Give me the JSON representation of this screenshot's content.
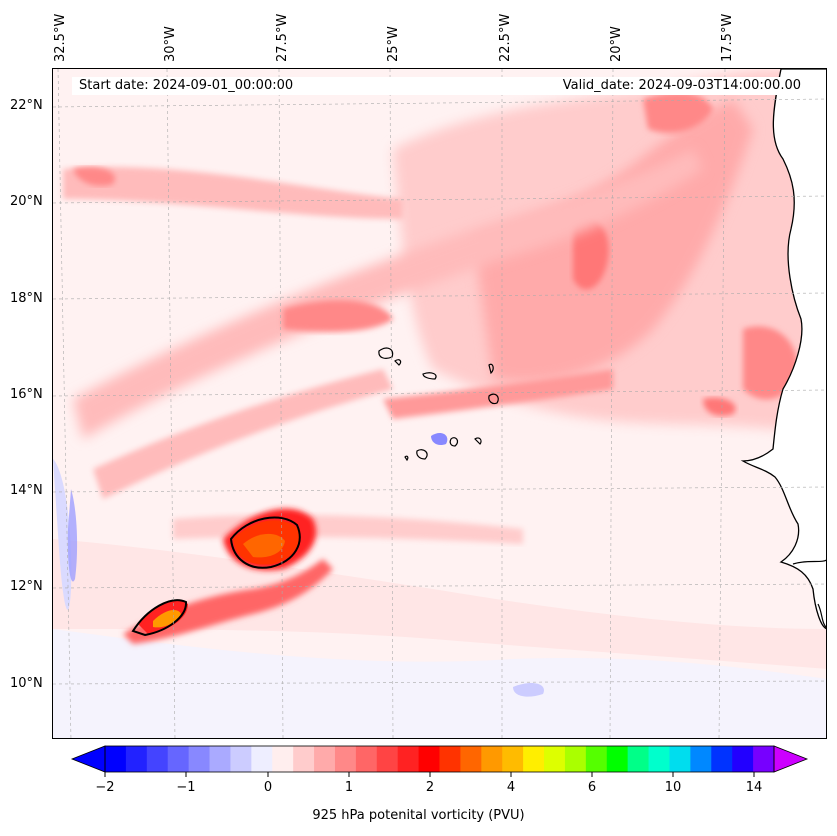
{
  "map": {
    "start_date": "Start date: 2024-09-01_00:00:00",
    "valid_date": "Valid_date: 2024-09-03T14:00:00.00",
    "lon_labels": [
      "32.5°W",
      "30°W",
      "27.5°W",
      "25°W",
      "22.5°W",
      "20°W",
      "17.5°W"
    ],
    "lat_labels": [
      "22°N",
      "20°N",
      "18°N",
      "16°N",
      "14°N",
      "12°N",
      "10°N"
    ]
  },
  "colorbar": {
    "label": "925 hPa potenital vorticity (PVU)",
    "tick_labels": [
      "−2",
      "−1",
      "0",
      "1",
      "2",
      "4",
      "6",
      "10",
      "14"
    ],
    "colors": [
      "#0000ff",
      "#2222ff",
      "#4444ff",
      "#6666ff",
      "#8888ff",
      "#aaaaff",
      "#ccccff",
      "#eeeeff",
      "#ffeeee",
      "#ffcccc",
      "#ffaaaa",
      "#ff8888",
      "#ff6666",
      "#ff4444",
      "#ff2222",
      "#ff0000",
      "#ff3300",
      "#ff6600",
      "#ff9900",
      "#ffbb00",
      "#ffee00",
      "#ddff00",
      "#aaff00",
      "#55ff00",
      "#00ff00",
      "#00ff88",
      "#00ffcc",
      "#00ddee",
      "#0088ff",
      "#0033ff",
      "#2200ff",
      "#7700ff"
    ],
    "under_color": "#0000ff",
    "over_color": "#cc00ff"
  }
}
